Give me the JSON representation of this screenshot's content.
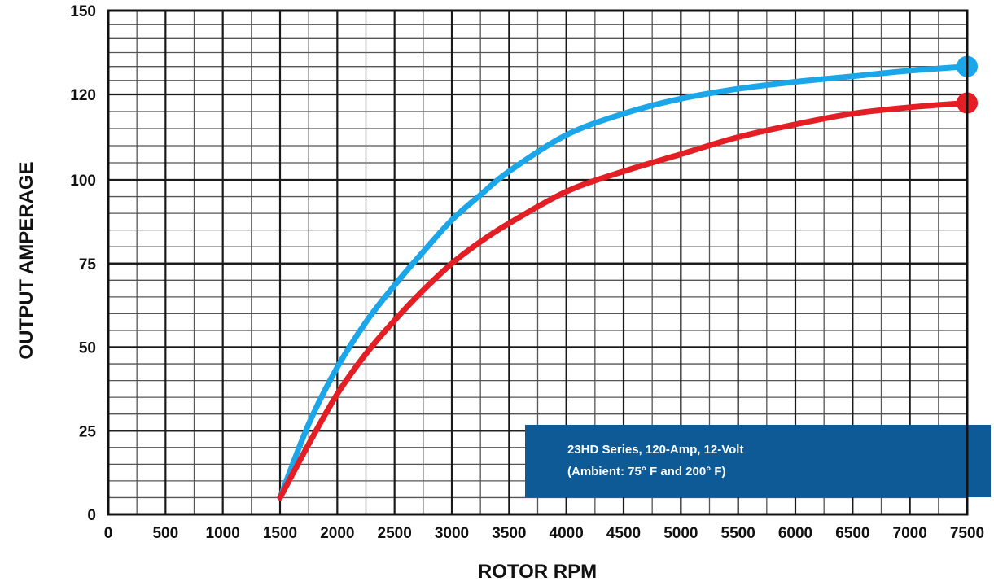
{
  "chart_data": {
    "type": "line",
    "xlabel": "ROTOR RPM",
    "ylabel": "OUTPUT AMPERAGE",
    "xlim": [
      0,
      7500
    ],
    "ylim": [
      0,
      150
    ],
    "x_ticks": [
      0,
      500,
      1000,
      1500,
      2000,
      2500,
      3000,
      3500,
      4000,
      4500,
      5000,
      5500,
      6000,
      6500,
      7000,
      7500
    ],
    "y_ticks": [
      0,
      25,
      50,
      75,
      100,
      120,
      150
    ],
    "x_tick_labels": [
      "0",
      "500",
      "1000",
      "1500",
      "2000",
      "2500",
      "3000",
      "3500",
      "4000",
      "4500",
      "5000",
      "5500",
      "6000",
      "6500",
      "7000",
      "7500"
    ],
    "y_tick_labels": [
      "0",
      "25",
      "50",
      "75",
      "100",
      "120",
      "150"
    ],
    "grid": true,
    "series": [
      {
        "color": "#1aa6e8",
        "x": [
          1500,
          1750,
          2000,
          2250,
          2500,
          2750,
          3000,
          3250,
          3500,
          4000,
          4500,
          5000,
          5500,
          6000,
          6500,
          7000,
          7500
        ],
        "y": [
          5,
          27,
          44,
          57.5,
          68.5,
          78.5,
          88,
          95.5,
          102,
          110.5,
          115.5,
          119,
          122,
          124.5,
          126.5,
          128.5,
          130
        ]
      },
      {
        "color": "#e31e24",
        "x": [
          1500,
          1750,
          2000,
          2250,
          2500,
          2750,
          3000,
          3250,
          3500,
          4000,
          4500,
          5000,
          5500,
          6000,
          6500,
          7000,
          7500
        ],
        "y": [
          5,
          21,
          36,
          48,
          58,
          67,
          75,
          81.5,
          87,
          96.5,
          102,
          106,
          110,
          113,
          115.5,
          117,
          118
        ]
      }
    ],
    "annotation": {
      "lines": [
        "23HD Series, 120-Amp, 12-Volt",
        "(Ambient: 75° F and 200° F)"
      ],
      "color": "#0d5a96"
    }
  }
}
